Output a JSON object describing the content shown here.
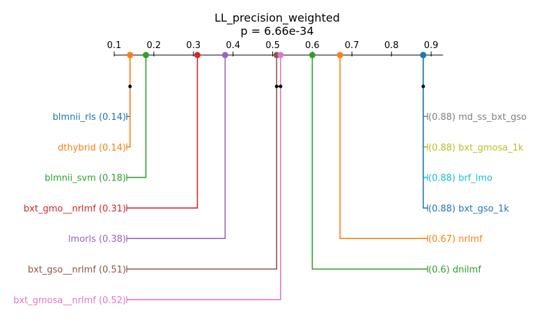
{
  "chart_data": {
    "type": "critical-difference",
    "title": "LL_precision_weighted",
    "subtitle": "p = 6.66e-34",
    "axis": {
      "ticks": [
        0.1,
        0.2,
        0.3,
        0.4,
        0.5,
        0.6,
        0.7,
        0.8,
        0.9
      ],
      "tick_labels": [
        "0.1",
        "0.2",
        "0.3",
        "0.4",
        "0.5",
        "0.6",
        "0.7",
        "0.8",
        "0.9"
      ],
      "range": [
        0.1,
        0.93
      ]
    },
    "left_methods": [
      {
        "name": "blmnii_rls",
        "value": 0.14,
        "label": "blmnii_rls (0.14)",
        "color": "#1f77b4"
      },
      {
        "name": "dthybrid",
        "value": 0.14,
        "label": "dthybrid (0.14)",
        "color": "#ff7f0e"
      },
      {
        "name": "blmnii_svm",
        "value": 0.18,
        "label": "blmnii_svm (0.18)",
        "color": "#2ca02c"
      },
      {
        "name": "bxt_gmo__nrlmf",
        "value": 0.31,
        "label": "bxt_gmo__nrlmf (0.31)",
        "color": "#d62728"
      },
      {
        "name": "lmorls",
        "value": 0.38,
        "label": "lmorls (0.38)",
        "color": "#9467bd"
      },
      {
        "name": "bxt_gso__nrlmf",
        "value": 0.51,
        "label": "bxt_gso__nrlmf (0.51)",
        "color": "#8c564b"
      },
      {
        "name": "bxt_gmosa__nrlmf",
        "value": 0.52,
        "label": "bxt_gmosa__nrlmf (0.52)",
        "color": "#e377c2"
      }
    ],
    "right_methods": [
      {
        "name": "md_ss_bxt_gso",
        "value": 0.88,
        "label": "(0.88) md_ss_bxt_gso",
        "color": "#7f7f7f"
      },
      {
        "name": "bxt_gmosa_1k",
        "value": 0.88,
        "label": "(0.88) bxt_gmosa_1k",
        "color": "#bcbd22"
      },
      {
        "name": "brf_lmo",
        "value": 0.88,
        "label": "(0.88) brf_lmo",
        "color": "#17becf"
      },
      {
        "name": "bxt_gso_1k",
        "value": 0.88,
        "label": "(0.88) bxt_gso_1k",
        "color": "#1f77b4"
      },
      {
        "name": "nrlmf",
        "value": 0.67,
        "label": "(0.67) nrlmf",
        "color": "#ff7f0e"
      },
      {
        "name": "dnilmf",
        "value": 0.6,
        "label": "(0.6) dnilmf",
        "color": "#2ca02c"
      }
    ],
    "cliques": [
      {
        "from": 0.14,
        "to": 0.14
      },
      {
        "from": 0.51,
        "to": 0.52
      },
      {
        "from": 0.88,
        "to": 0.88
      }
    ]
  }
}
